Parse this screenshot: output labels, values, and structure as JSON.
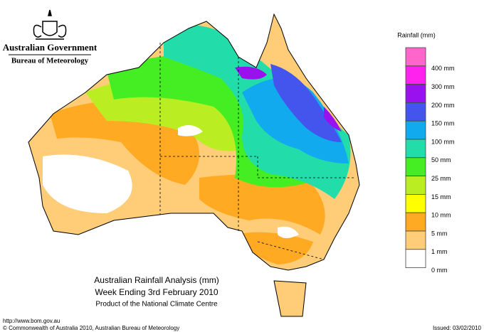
{
  "header": {
    "government": "Australian Government",
    "bureau": "Bureau of Meteorology"
  },
  "legend": {
    "title": "Rainfall (mm)",
    "entries": [
      {
        "label": "400 mm",
        "color": "#ff66cc"
      },
      {
        "label": "300 mm",
        "color": "#ff22ee"
      },
      {
        "label": "200 mm",
        "color": "#9911ee"
      },
      {
        "label": "150 mm",
        "color": "#4455ee"
      },
      {
        "label": "100 mm",
        "color": "#11aaee"
      },
      {
        "label": "50 mm",
        "color": "#22ddaa"
      },
      {
        "label": "25 mm",
        "color": "#44ee22"
      },
      {
        "label": "15 mm",
        "color": "#bbee22"
      },
      {
        "label": "10 mm",
        "color": "#ffff00"
      },
      {
        "label": "5 mm",
        "color": "#ffaa22"
      },
      {
        "label": "1 mm",
        "color": "#ffcc77"
      },
      {
        "label": "0 mm",
        "color": "#ffffff"
      }
    ]
  },
  "caption": {
    "title": "Australian Rainfall Analysis (mm)",
    "subtitle": "Week Ending 3rd February 2010",
    "credit": "Product of the National Climate Centre"
  },
  "footer": {
    "url": "http://www.bom.gov.au",
    "copyright": "© Commonwealth of Australia 2010, Australian Bureau of Meteorology",
    "issued": "Issued: 03/02/2010"
  }
}
